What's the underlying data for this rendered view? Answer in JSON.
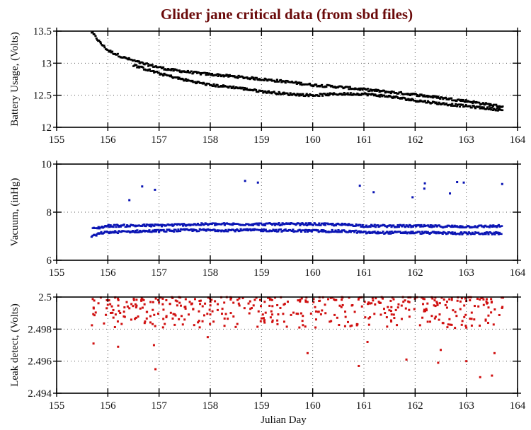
{
  "chart_data": [
    {
      "type": "scatter",
      "panel": "battery",
      "title": "Glider jane critical data (from sbd files)",
      "xlabel": "",
      "ylabel": "Battery Usage, (Volts)",
      "xlim": [
        155,
        164
      ],
      "ylim": [
        12,
        13.5
      ],
      "xticks": [
        "155",
        "156",
        "157",
        "158",
        "159",
        "160",
        "161",
        "162",
        "163",
        "164"
      ],
      "yticks": [
        "12",
        "12.5",
        "13",
        "13.5"
      ],
      "grid": true,
      "color": "#000000",
      "series": [
        {
          "name": "upper band",
          "x_range": [
            155.68,
            163.72
          ],
          "y_points": [
            [
              155.68,
              13.49
            ],
            [
              155.85,
              13.32
            ],
            [
              156.0,
              13.2
            ],
            [
              156.3,
              13.09
            ],
            [
              156.7,
              12.99
            ],
            [
              157.2,
              12.9
            ],
            [
              157.8,
              12.84
            ],
            [
              158.5,
              12.79
            ],
            [
              159.0,
              12.75
            ],
            [
              159.5,
              12.71
            ],
            [
              160.0,
              12.66
            ],
            [
              160.5,
              12.63
            ],
            [
              161.0,
              12.59
            ],
            [
              161.5,
              12.55
            ],
            [
              162.0,
              12.51
            ],
            [
              162.5,
              12.46
            ],
            [
              163.0,
              12.41
            ],
            [
              163.4,
              12.36
            ],
            [
              163.72,
              12.32
            ]
          ]
        },
        {
          "name": "lower band",
          "x_range": [
            156.5,
            163.72
          ],
          "y_points": [
            [
              156.5,
              12.97
            ],
            [
              157.0,
              12.84
            ],
            [
              157.5,
              12.74
            ],
            [
              158.0,
              12.66
            ],
            [
              158.5,
              12.62
            ],
            [
              159.0,
              12.56
            ],
            [
              159.5,
              12.52
            ],
            [
              160.0,
              12.5
            ],
            [
              160.5,
              12.52
            ],
            [
              161.0,
              12.52
            ],
            [
              161.5,
              12.48
            ],
            [
              162.0,
              12.42
            ],
            [
              162.5,
              12.37
            ],
            [
              163.0,
              12.33
            ],
            [
              163.72,
              12.27
            ]
          ]
        }
      ]
    },
    {
      "type": "scatter",
      "panel": "vacuum",
      "xlabel": "",
      "ylabel": "Vacuum, (inHg)",
      "xlim": [
        155,
        164
      ],
      "ylim": [
        6,
        10
      ],
      "xticks": [
        "155",
        "156",
        "157",
        "158",
        "159",
        "160",
        "161",
        "162",
        "163",
        "164"
      ],
      "yticks": [
        "6",
        "8",
        "10"
      ],
      "grid": true,
      "color": "#0a14b4",
      "series": [
        {
          "name": "upper band",
          "x_range": [
            155.7,
            163.7
          ],
          "y_points": [
            [
              155.7,
              7.3
            ],
            [
              156.0,
              7.43
            ],
            [
              157.0,
              7.45
            ],
            [
              157.5,
              7.48
            ],
            [
              158.0,
              7.5
            ],
            [
              159.0,
              7.5
            ],
            [
              160.0,
              7.5
            ],
            [
              160.8,
              7.47
            ],
            [
              161.0,
              7.43
            ],
            [
              162.0,
              7.42
            ],
            [
              163.0,
              7.4
            ],
            [
              163.7,
              7.42
            ]
          ]
        },
        {
          "name": "lower band",
          "x_range": [
            155.68,
            163.7
          ],
          "y_points": [
            [
              155.68,
              6.98
            ],
            [
              155.9,
              7.15
            ],
            [
              156.5,
              7.2
            ],
            [
              157.0,
              7.22
            ],
            [
              157.5,
              7.25
            ],
            [
              158.0,
              7.25
            ],
            [
              159.0,
              7.25
            ],
            [
              160.0,
              7.22
            ],
            [
              160.8,
              7.2
            ],
            [
              161.0,
              7.15
            ],
            [
              162.0,
              7.15
            ],
            [
              163.0,
              7.12
            ],
            [
              163.7,
              7.12
            ]
          ]
        },
        {
          "name": "outliers",
          "points": [
            [
              156.42,
              8.5
            ],
            [
              156.67,
              9.07
            ],
            [
              156.92,
              8.93
            ],
            [
              158.68,
              9.3
            ],
            [
              158.93,
              9.23
            ],
            [
              160.92,
              9.1
            ],
            [
              161.19,
              8.83
            ],
            [
              161.95,
              8.62
            ],
            [
              162.18,
              8.98
            ],
            [
              162.19,
              9.2
            ],
            [
              162.68,
              8.78
            ],
            [
              162.82,
              9.25
            ],
            [
              162.95,
              9.23
            ],
            [
              163.7,
              9.17
            ]
          ]
        }
      ]
    },
    {
      "type": "scatter",
      "panel": "leak",
      "xlabel": "Julian Day",
      "ylabel": "Leak detect, (Volts)",
      "xlim": [
        155,
        164
      ],
      "ylim": [
        2.494,
        2.5
      ],
      "xticks": [
        "155",
        "156",
        "157",
        "158",
        "159",
        "160",
        "161",
        "162",
        "163",
        "164"
      ],
      "yticks": [
        "2.494",
        "2.496",
        "2.498",
        "2.5"
      ],
      "grid": true,
      "color": "#d01010",
      "series": [
        {
          "name": "scattered readings",
          "x_range": [
            155.68,
            163.72
          ],
          "y_range": [
            2.4981,
            2.5
          ],
          "density": "dense near top"
        },
        {
          "name": "low readings",
          "points": [
            [
              155.72,
              2.4971
            ],
            [
              156.2,
              2.4969
            ],
            [
              156.9,
              2.497
            ],
            [
              156.93,
              2.4955
            ],
            [
              157.95,
              2.4975
            ],
            [
              159.9,
              2.4965
            ],
            [
              160.9,
              2.4957
            ],
            [
              161.83,
              2.4961
            ],
            [
              162.45,
              2.4959
            ],
            [
              163.0,
              2.496
            ],
            [
              163.27,
              2.495
            ],
            [
              163.5,
              2.4951
            ],
            [
              163.55,
              2.4965
            ],
            [
              162.5,
              2.4967
            ],
            [
              161.07,
              2.4972
            ]
          ]
        }
      ]
    }
  ]
}
